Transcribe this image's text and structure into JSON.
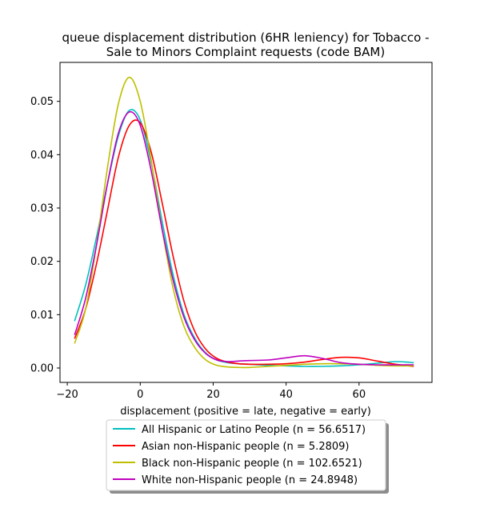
{
  "chart_data": {
    "type": "line",
    "title_line1": "queue displacement distribution (6HR leniency) for Tobacco -",
    "title_line2": "Sale to Minors Complaint  requests (code BAM)",
    "xlabel": "displacement (positive = late, negative = early)",
    "ylabel": "",
    "xlim": [
      -22,
      80
    ],
    "ylim": [
      -0.0027,
      0.0573
    ],
    "x_ticks": [
      -20,
      0,
      20,
      40,
      60
    ],
    "x_tick_labels": [
      "−20",
      "0",
      "20",
      "40",
      "60"
    ],
    "y_ticks": [
      0.0,
      0.01,
      0.02,
      0.03,
      0.04,
      0.05
    ],
    "y_tick_labels": [
      "0.00",
      "0.01",
      "0.02",
      "0.03",
      "0.04",
      "0.05"
    ],
    "grid": false,
    "legend_position": "below",
    "series": [
      {
        "name": "All Hispanic or Latino People (n = 56.6517)",
        "color": "#00bfbf",
        "x": [
          -18,
          -15,
          -12,
          -9,
          -6,
          -3,
          0,
          3,
          6,
          9,
          12,
          15,
          18,
          21,
          24,
          27,
          30,
          35,
          40,
          45,
          50,
          55,
          60,
          65,
          70,
          75
        ],
        "y": [
          0.0088,
          0.0155,
          0.0245,
          0.0345,
          0.0435,
          0.0483,
          0.0465,
          0.0385,
          0.0275,
          0.0175,
          0.01,
          0.0055,
          0.0028,
          0.0015,
          0.001,
          0.0008,
          0.0007,
          0.0005,
          0.0004,
          0.0003,
          0.0003,
          0.0004,
          0.0006,
          0.0009,
          0.0012,
          0.001
        ]
      },
      {
        "name": "Asian non-Hispanic people (n = 5.2809)",
        "color": "#ff0000",
        "x": [
          -18,
          -15,
          -12,
          -9,
          -6,
          -3,
          0,
          3,
          6,
          9,
          12,
          15,
          18,
          21,
          24,
          27,
          30,
          35,
          40,
          45,
          50,
          55,
          60,
          65,
          70,
          75
        ],
        "y": [
          0.0055,
          0.011,
          0.0195,
          0.0295,
          0.0395,
          0.0455,
          0.046,
          0.0405,
          0.031,
          0.021,
          0.0125,
          0.0068,
          0.0035,
          0.0018,
          0.0011,
          0.0008,
          0.0007,
          0.0007,
          0.0008,
          0.0011,
          0.0016,
          0.002,
          0.0019,
          0.0013,
          0.0007,
          0.0003
        ]
      },
      {
        "name": "Black non-Hispanic people (n = 102.6521)",
        "color": "#bfbf00",
        "x": [
          -18,
          -15,
          -12,
          -9,
          -6,
          -3,
          0,
          3,
          6,
          9,
          12,
          15,
          18,
          21,
          24,
          27,
          30,
          35,
          40,
          45,
          50,
          55,
          60,
          65,
          70,
          75
        ],
        "y": [
          0.0046,
          0.011,
          0.023,
          0.0375,
          0.0495,
          0.0545,
          0.05,
          0.039,
          0.026,
          0.015,
          0.0078,
          0.0038,
          0.0015,
          0.0005,
          0.0002,
          0.0001,
          0.0001,
          0.0003,
          0.0005,
          0.0007,
          0.0008,
          0.0008,
          0.0007,
          0.0005,
          0.0004,
          0.0004
        ]
      },
      {
        "name": "White non-Hispanic people (n = 24.8948)",
        "color": "#bf00bf",
        "x": [
          -18,
          -15,
          -12,
          -9,
          -6,
          -3,
          0,
          3,
          6,
          9,
          12,
          15,
          18,
          21,
          24,
          27,
          30,
          35,
          40,
          45,
          50,
          55,
          60,
          65,
          70,
          75
        ],
        "y": [
          0.0062,
          0.013,
          0.023,
          0.0345,
          0.044,
          0.048,
          0.0455,
          0.037,
          0.026,
          0.0165,
          0.0095,
          0.0052,
          0.0027,
          0.0015,
          0.0012,
          0.0013,
          0.0014,
          0.0015,
          0.0019,
          0.0023,
          0.0018,
          0.001,
          0.0007,
          0.0006,
          0.0006,
          0.0006
        ]
      }
    ]
  }
}
